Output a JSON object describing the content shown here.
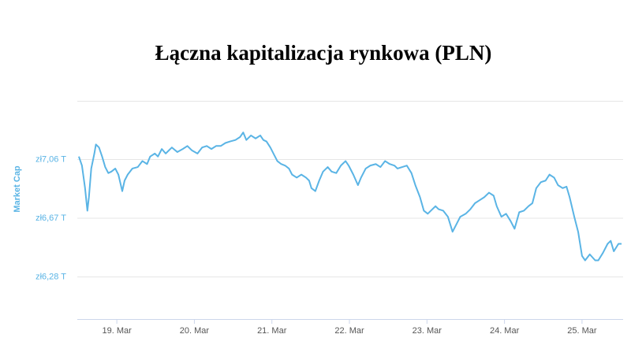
{
  "chart_data": {
    "type": "line",
    "title": "Łączna kapitalizacja rynkowa (PLN)",
    "y_label": "Market Cap",
    "xlim": [
      18.49,
      25.53
    ],
    "ylim": [
      6.0,
      7.45
    ],
    "xticks": [
      {
        "value": 19,
        "label": "19. Mar"
      },
      {
        "value": 20,
        "label": "20. Mar"
      },
      {
        "value": 21,
        "label": "21. Mar"
      },
      {
        "value": 22,
        "label": "22. Mar"
      },
      {
        "value": 23,
        "label": "23. Mar"
      },
      {
        "value": 24,
        "label": "24. Mar"
      },
      {
        "value": 25,
        "label": "25. Mar"
      }
    ],
    "yticks": [
      {
        "value": 6.28,
        "label": "zł6,28 T"
      },
      {
        "value": 6.67,
        "label": "zł6,67 T"
      },
      {
        "value": 7.06,
        "label": "zł7,06 T"
      }
    ],
    "grid": true,
    "x": [
      18.51,
      18.55,
      18.59,
      18.62,
      18.64,
      18.67,
      18.71,
      18.73,
      18.77,
      18.81,
      18.85,
      18.89,
      18.93,
      18.98,
      19.02,
      19.07,
      19.1,
      19.14,
      19.2,
      19.27,
      19.33,
      19.39,
      19.43,
      19.49,
      19.53,
      19.58,
      19.63,
      19.71,
      19.78,
      19.85,
      19.91,
      19.97,
      20.04,
      20.1,
      20.16,
      20.22,
      20.28,
      20.34,
      20.4,
      20.46,
      20.53,
      20.59,
      20.63,
      20.67,
      20.73,
      20.79,
      20.85,
      20.89,
      20.93,
      20.98,
      21.03,
      21.07,
      21.12,
      21.17,
      21.22,
      21.26,
      21.32,
      21.38,
      21.44,
      21.48,
      21.51,
      21.56,
      21.61,
      21.66,
      21.72,
      21.77,
      21.83,
      21.89,
      21.95,
      21.99,
      22.05,
      22.11,
      22.15,
      22.21,
      22.27,
      22.34,
      22.4,
      22.46,
      22.52,
      22.58,
      22.62,
      22.68,
      22.74,
      22.8,
      22.85,
      22.91,
      22.96,
      23.01,
      23.07,
      23.11,
      23.15,
      23.21,
      23.27,
      23.33,
      23.38,
      23.43,
      23.5,
      23.56,
      23.62,
      23.68,
      23.74,
      23.8,
      23.86,
      23.9,
      23.96,
      24.02,
      24.08,
      24.13,
      24.19,
      24.25,
      24.31,
      24.36,
      24.41,
      24.47,
      24.53,
      24.58,
      24.64,
      24.69,
      24.75,
      24.8,
      24.84,
      24.9,
      24.95,
      25.0,
      25.04,
      25.1,
      25.17,
      25.21,
      25.27,
      25.33,
      25.37,
      25.41,
      25.47,
      25.51
    ],
    "series": [
      {
        "name": "Market Cap",
        "color": "#5ab4e5",
        "values": [
          7.08,
          7.02,
          6.87,
          6.72,
          6.81,
          7.0,
          7.1,
          7.16,
          7.14,
          7.08,
          7.01,
          6.97,
          6.98,
          7.0,
          6.96,
          6.85,
          6.92,
          6.96,
          7.0,
          7.01,
          7.05,
          7.03,
          7.08,
          7.1,
          7.08,
          7.13,
          7.1,
          7.14,
          7.11,
          7.13,
          7.15,
          7.12,
          7.1,
          7.14,
          7.15,
          7.13,
          7.15,
          7.15,
          7.17,
          7.18,
          7.19,
          7.21,
          7.24,
          7.19,
          7.22,
          7.2,
          7.22,
          7.19,
          7.18,
          7.14,
          7.09,
          7.05,
          7.03,
          7.02,
          7.0,
          6.96,
          6.94,
          6.96,
          6.94,
          6.92,
          6.87,
          6.85,
          6.92,
          6.98,
          7.01,
          6.98,
          6.97,
          7.02,
          7.05,
          7.02,
          6.96,
          6.89,
          6.94,
          7.0,
          7.02,
          7.03,
          7.01,
          7.05,
          7.03,
          7.02,
          7.0,
          7.01,
          7.02,
          6.97,
          6.89,
          6.81,
          6.72,
          6.7,
          6.73,
          6.75,
          6.73,
          6.72,
          6.68,
          6.58,
          6.63,
          6.68,
          6.7,
          6.73,
          6.77,
          6.79,
          6.81,
          6.84,
          6.82,
          6.75,
          6.68,
          6.7,
          6.65,
          6.6,
          6.71,
          6.72,
          6.75,
          6.77,
          6.87,
          6.91,
          6.92,
          6.96,
          6.94,
          6.89,
          6.87,
          6.88,
          6.81,
          6.68,
          6.58,
          6.42,
          6.39,
          6.43,
          6.39,
          6.39,
          6.44,
          6.5,
          6.52,
          6.45,
          6.5,
          6.5
        ]
      }
    ]
  }
}
